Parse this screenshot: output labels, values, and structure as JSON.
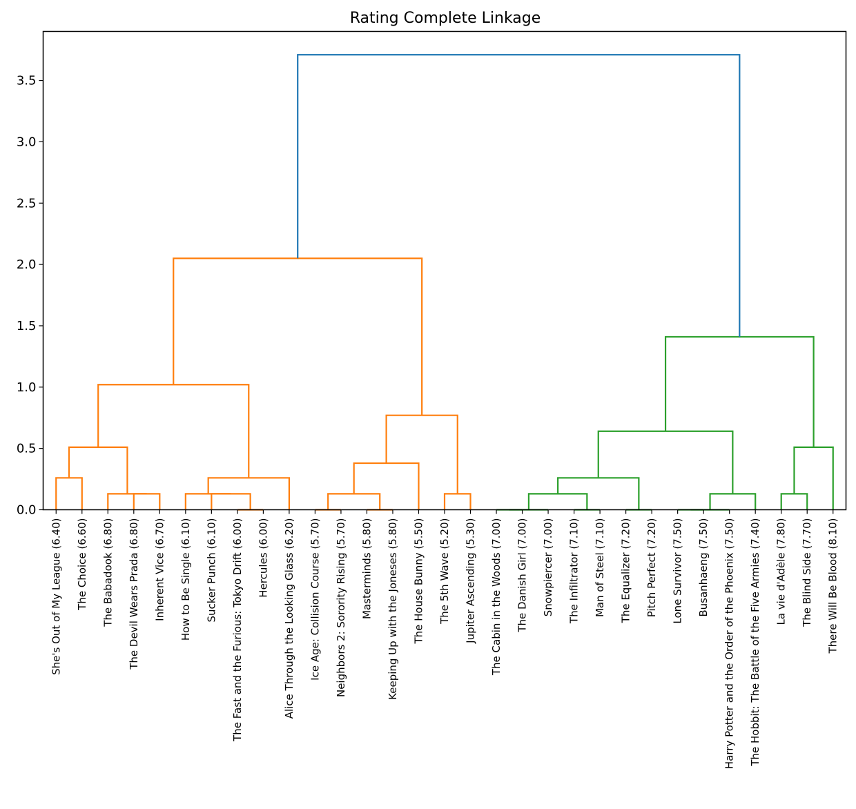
{
  "chart_data": {
    "type": "dendrogram",
    "title": "Rating Complete Linkage",
    "xlabel": "",
    "ylabel": "",
    "ylim": [
      0,
      3.9
    ],
    "yticks": [
      "0.0",
      "0.5",
      "1.0",
      "1.5",
      "2.0",
      "2.5",
      "3.0",
      "3.5"
    ],
    "ytick_values": [
      0,
      0.5,
      1.0,
      1.5,
      2.0,
      2.5,
      3.0,
      3.5
    ],
    "grid": false,
    "leaves": [
      "She's Out of My League (6.40)",
      "The Choice (6.60)",
      "The Babadook (6.80)",
      "The Devil Wears Prada (6.80)",
      "Inherent Vice (6.70)",
      "How to Be Single (6.10)",
      "Sucker Punch (6.10)",
      "The Fast and the Furious: Tokyo Drift (6.00)",
      "Hercules (6.00)",
      "Alice Through the Looking Glass (6.20)",
      "Ice Age: Collision Course (5.70)",
      "Neighbors 2: Sorority Rising (5.70)",
      "Masterminds (5.80)",
      "Keeping Up with the Joneses (5.80)",
      "The House Bunny (5.50)",
      "The 5th Wave (5.20)",
      "Jupiter Ascending (5.30)",
      "The Cabin in the Woods (7.00)",
      "The Danish Girl (7.00)",
      "Snowpiercer (7.00)",
      "The Infiltrator (7.10)",
      "Man of Steel (7.10)",
      "The Equalizer (7.20)",
      "Pitch Perfect (7.20)",
      "Lone Survivor (7.50)",
      "Busanhaeng (7.50)",
      "Harry Potter and the Order of the Phoenix (7.50)",
      "The Hobbit: The Battle of the Five Armies (7.40)",
      "La vie d'Adèle (7.80)",
      "The Blind Side (7.70)",
      "There Will Be Blood (8.10)"
    ],
    "colors": {
      "cluster_1": "#ff7f0e",
      "cluster_2": "#2ca02c",
      "root": "#1f77b4"
    },
    "merges": [
      {
        "a": 0,
        "b": 1,
        "height": 0.26,
        "color": "cluster_1"
      },
      {
        "a": 3,
        "b": 4,
        "height": 0.13,
        "color": "cluster_1"
      },
      {
        "a": 2,
        "b": 32,
        "height": 0.13,
        "color": "cluster_1"
      },
      {
        "a": 31,
        "b": 33,
        "height": 0.51,
        "color": "cluster_1"
      },
      {
        "a": 7,
        "b": 8,
        "height": 0.0,
        "color": "cluster_1"
      },
      {
        "a": 6,
        "b": 35,
        "height": 0.13,
        "color": "cluster_1"
      },
      {
        "a": 5,
        "b": 36,
        "height": 0.13,
        "color": "cluster_1"
      },
      {
        "a": 37,
        "b": 9,
        "height": 0.26,
        "color": "cluster_1"
      },
      {
        "a": 34,
        "b": 38,
        "height": 1.02,
        "color": "cluster_1"
      },
      {
        "a": 10,
        "b": 11,
        "height": 0.0,
        "color": "cluster_1"
      },
      {
        "a": 12,
        "b": 13,
        "height": 0.0,
        "color": "cluster_1"
      },
      {
        "a": 40,
        "b": 41,
        "height": 0.13,
        "color": "cluster_1"
      },
      {
        "a": 42,
        "b": 14,
        "height": 0.38,
        "color": "cluster_1"
      },
      {
        "a": 15,
        "b": 16,
        "height": 0.13,
        "color": "cluster_1"
      },
      {
        "a": 43,
        "b": 44,
        "height": 0.77,
        "color": "cluster_1"
      },
      {
        "a": 39,
        "b": 45,
        "height": 2.05,
        "color": "cluster_1"
      },
      {
        "a": 17,
        "b": 18,
        "height": 0.0,
        "color": "cluster_2"
      },
      {
        "a": 47,
        "b": 19,
        "height": 0.0,
        "color": "cluster_2"
      },
      {
        "a": 20,
        "b": 21,
        "height": 0.0,
        "color": "cluster_2"
      },
      {
        "a": 48,
        "b": 49,
        "height": 0.13,
        "color": "cluster_2"
      },
      {
        "a": 22,
        "b": 23,
        "height": 0.0,
        "color": "cluster_2"
      },
      {
        "a": 50,
        "b": 51,
        "height": 0.26,
        "color": "cluster_2"
      },
      {
        "a": 24,
        "b": 25,
        "height": 0.0,
        "color": "cluster_2"
      },
      {
        "a": 53,
        "b": 26,
        "height": 0.0,
        "color": "cluster_2"
      },
      {
        "a": 54,
        "b": 27,
        "height": 0.13,
        "color": "cluster_2"
      },
      {
        "a": 52,
        "b": 55,
        "height": 0.64,
        "color": "cluster_2"
      },
      {
        "a": 28,
        "b": 29,
        "height": 0.13,
        "color": "cluster_2"
      },
      {
        "a": 57,
        "b": 30,
        "height": 0.51,
        "color": "cluster_2"
      },
      {
        "a": 56,
        "b": 58,
        "height": 1.41,
        "color": "cluster_2"
      },
      {
        "a": 46,
        "b": 59,
        "height": 3.71,
        "color": "root"
      }
    ]
  }
}
